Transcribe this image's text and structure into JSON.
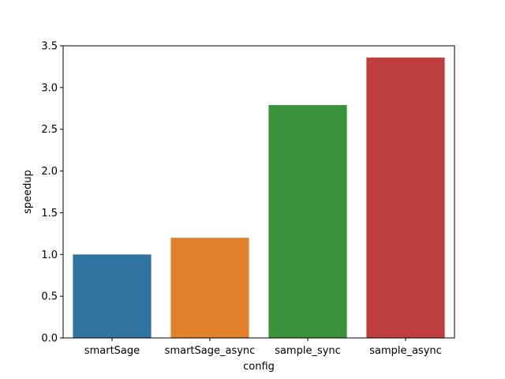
{
  "chart_data": {
    "type": "bar",
    "title": "",
    "xlabel": "config",
    "ylabel": "speedup",
    "categories": [
      "smartSage",
      "smartSage_async",
      "sample_sync",
      "sample_async"
    ],
    "values": [
      1.0,
      1.2,
      2.79,
      3.36
    ],
    "colors": [
      "#3274a1",
      "#e1812c",
      "#3a923a",
      "#c03d3e"
    ],
    "ylim": [
      0,
      3.5
    ],
    "yticks": [
      0.0,
      0.5,
      1.0,
      1.5,
      2.0,
      2.5,
      3.0,
      3.5
    ],
    "ytick_labels": [
      "0.0",
      "0.5",
      "1.0",
      "1.5",
      "2.0",
      "2.5",
      "3.0",
      "3.5"
    ],
    "grid": false,
    "legend": "none"
  }
}
